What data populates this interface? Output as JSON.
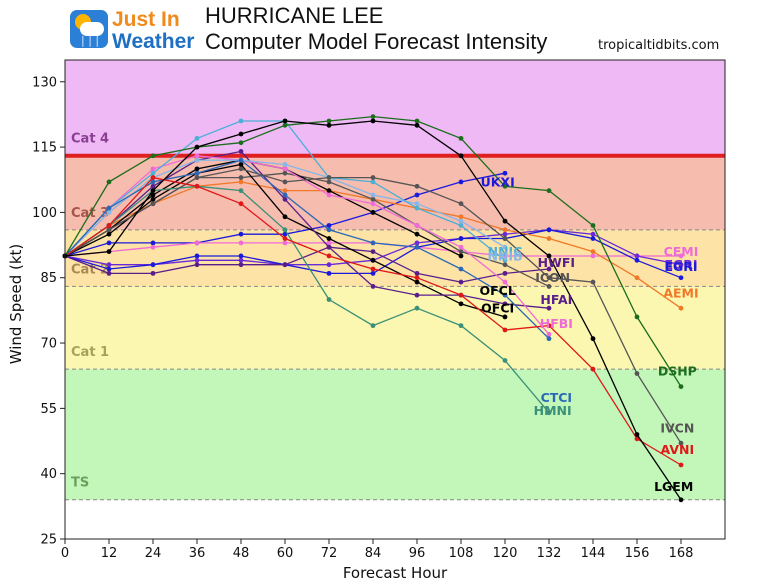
{
  "header": {
    "logo_line1": "Just In",
    "logo_line2": "Weather",
    "title_line1": "HURRICANE LEE",
    "title_line2": "Computer Model Forecast Intensity",
    "credit": "tropicaltidbits.com"
  },
  "chart_data": {
    "type": "line",
    "xlabel": "Forecast Hour",
    "ylabel": "Wind Speed (kt)",
    "xlim": [
      0,
      180
    ],
    "ylim": [
      25,
      135
    ],
    "xticks": [
      0,
      12,
      24,
      36,
      48,
      60,
      72,
      84,
      96,
      108,
      120,
      132,
      144,
      156,
      168
    ],
    "yticks": [
      25,
      40,
      55,
      70,
      85,
      100,
      115,
      130
    ],
    "bands": [
      {
        "label": "TS",
        "from": 34,
        "to": 64,
        "color": "#c2f7b9",
        "text_color": "#6e9e5e",
        "label_y": 37
      },
      {
        "label": "Cat 1",
        "from": 64,
        "to": 83,
        "color": "#fbf7b0",
        "text_color": "#a7a25a",
        "label_y": 67
      },
      {
        "label": "Cat 2",
        "from": 83,
        "to": 96,
        "color": "#fde3a6",
        "text_color": "#a88a52",
        "label_y": 86
      },
      {
        "label": "Cat 3",
        "from": 96,
        "to": 113,
        "color": "#f6bcae",
        "text_color": "#a6544a",
        "label_y": 99
      },
      {
        "label": "Cat 4",
        "from": 113,
        "to": 135,
        "color": "#eeb9f4",
        "text_color": "#8a3f92",
        "label_y": 116
      }
    ],
    "band_lines": [
      34,
      64,
      83,
      96
    ],
    "cat4_line": {
      "y": 113,
      "color": "#e02020"
    },
    "series": [
      {
        "name": "UKXI",
        "color": "#1a1adc",
        "x": [
          0,
          12,
          24,
          36,
          48,
          60,
          72,
          84,
          96,
          108,
          120
        ],
        "y": [
          90,
          93,
          93,
          93,
          95,
          95,
          97,
          100,
          104,
          107,
          109
        ]
      },
      {
        "name": "CEMI",
        "color": "#f06ad8",
        "x": [
          0,
          12,
          24,
          36,
          48,
          60,
          72,
          84,
          96,
          108,
          120,
          132,
          144,
          156,
          168
        ],
        "y": [
          90,
          91,
          92,
          93,
          93,
          93,
          93,
          93,
          92,
          91,
          90,
          90,
          90,
          90,
          90
        ]
      },
      {
        "name": "EGRI",
        "color": "#6a2ad8",
        "x": [
          0,
          12,
          24,
          36,
          48,
          60,
          72,
          84,
          96,
          108,
          120,
          132,
          144,
          156,
          168
        ],
        "y": [
          90,
          88,
          88,
          89,
          89,
          88,
          88,
          89,
          93,
          94,
          95,
          96,
          95,
          90,
          88
        ]
      },
      {
        "name": "EGRI",
        "color": "#1a1adc",
        "x": [
          0,
          12,
          24,
          36,
          48,
          60,
          72,
          84,
          96,
          108,
          120,
          132,
          144,
          156,
          168
        ],
        "y": [
          90,
          87,
          88,
          90,
          90,
          88,
          86,
          86,
          92,
          94,
          94,
          96,
          94,
          89,
          85
        ]
      },
      {
        "name": "AEMI",
        "color": "#f07828",
        "x": [
          0,
          12,
          24,
          36,
          48,
          60,
          72,
          84,
          96,
          108,
          120,
          132,
          144,
          156,
          168
        ],
        "y": [
          90,
          97,
          102,
          106,
          107,
          105,
          105,
          103,
          101,
          99,
          96,
          94,
          91,
          85,
          78
        ]
      },
      {
        "name": "HWFI",
        "color": "#5a1e8c",
        "x": [
          0,
          12,
          24,
          36,
          48,
          60,
          72,
          84,
          96,
          108,
          120,
          132
        ],
        "y": [
          90,
          86,
          86,
          88,
          88,
          88,
          92,
          91,
          86,
          84,
          86,
          87
        ]
      },
      {
        "name": "ICON",
        "color": "#555555",
        "x": [
          0,
          12,
          24,
          36,
          48,
          60,
          72,
          84,
          96,
          108,
          120,
          132
        ],
        "y": [
          90,
          96,
          102,
          108,
          108,
          109,
          107,
          103,
          97,
          91,
          88,
          83
        ]
      },
      {
        "name": "OFCL",
        "color": "#000000",
        "x": [
          0,
          12,
          24,
          36,
          48,
          60,
          72,
          84,
          96,
          108
        ],
        "y": [
          90,
          96,
          104,
          110,
          112,
          110,
          105,
          100,
          95,
          90
        ]
      },
      {
        "name": "OFCI",
        "color": "#000000",
        "x": [
          0,
          12,
          24,
          36,
          48,
          60,
          72,
          84,
          96,
          108,
          120
        ],
        "y": [
          90,
          95,
          103,
          109,
          111,
          99,
          94,
          89,
          84,
          79,
          76
        ]
      },
      {
        "name": "HFAI",
        "color": "#5a1e8c",
        "x": [
          0,
          12,
          24,
          36,
          48,
          60,
          72,
          84,
          96,
          108,
          120,
          132
        ],
        "y": [
          90,
          97,
          106,
          112,
          114,
          103,
          92,
          83,
          81,
          81,
          79,
          78
        ]
      },
      {
        "name": "HFBI",
        "color": "#f06ad8",
        "x": [
          0,
          12,
          24,
          36,
          48,
          60,
          72,
          84,
          96,
          108,
          120,
          132
        ],
        "y": [
          90,
          101,
          110,
          113,
          112,
          110,
          104,
          102,
          97,
          92,
          84,
          72
        ]
      },
      {
        "name": "NNIB",
        "color": "#87b6e8",
        "x": [
          0,
          12,
          24,
          36,
          48,
          60,
          72,
          84,
          96,
          108,
          120
        ],
        "y": [
          90,
          100,
          108,
          112,
          112,
          111,
          108,
          104,
          102,
          98,
          92
        ]
      },
      {
        "name": "NNIC",
        "color": "#4ab0d8",
        "x": [
          0,
          12,
          24,
          36,
          48,
          60,
          72,
          84,
          96,
          108,
          120
        ],
        "y": [
          90,
          101,
          109,
          117,
          121,
          121,
          108,
          107,
          101,
          97,
          89
        ]
      },
      {
        "name": "CTCI",
        "color": "#2a68b8",
        "x": [
          0,
          12,
          24,
          36,
          48,
          60,
          72,
          84,
          96,
          108,
          120,
          132
        ],
        "y": [
          90,
          101,
          107,
          109,
          112,
          104,
          96,
          93,
          92,
          87,
          81,
          71
        ]
      },
      {
        "name": "HMNI",
        "color": "#3a9078",
        "x": [
          0,
          12,
          24,
          36,
          48,
          60,
          72,
          84,
          96,
          108,
          120,
          132
        ],
        "y": [
          90,
          97,
          105,
          106,
          105,
          96,
          80,
          74,
          78,
          74,
          66,
          54
        ]
      },
      {
        "name": "DSHP",
        "color": "#1c6e1c",
        "x": [
          0,
          12,
          24,
          36,
          48,
          60,
          72,
          84,
          96,
          108,
          120,
          132,
          144,
          156,
          168
        ],
        "y": [
          90,
          107,
          113,
          115,
          116,
          120,
          121,
          122,
          121,
          117,
          106,
          105,
          97,
          76,
          60
        ]
      },
      {
        "name": "IVCN",
        "color": "#555555",
        "x": [
          0,
          12,
          24,
          36,
          48,
          60,
          72,
          84,
          96,
          108,
          120,
          132,
          144,
          156,
          168
        ],
        "y": [
          90,
          96,
          102,
          108,
          110,
          107,
          108,
          108,
          106,
          102,
          94,
          85,
          84,
          63,
          47
        ]
      },
      {
        "name": "AVNI",
        "color": "#e01818",
        "x": [
          0,
          12,
          24,
          36,
          48,
          60,
          72,
          84,
          96,
          108,
          120,
          132,
          144,
          156,
          168
        ],
        "y": [
          90,
          97,
          108,
          106,
          102,
          94,
          90,
          87,
          85,
          81,
          73,
          74,
          64,
          48,
          42
        ]
      },
      {
        "name": "LGEM",
        "color": "#000000",
        "x": [
          0,
          12,
          24,
          36,
          48,
          60,
          72,
          84,
          96,
          108,
          120,
          132,
          144,
          156,
          168
        ],
        "y": [
          90,
          91,
          105,
          115,
          118,
          121,
          120,
          121,
          120,
          113,
          98,
          90,
          71,
          49,
          34
        ]
      }
    ],
    "labels": [
      {
        "text": "UKXI",
        "color": "#1a1adc",
        "x": 118,
        "y": 106
      },
      {
        "text": "NNIC",
        "color": "#4ab0d8",
        "x": 120,
        "y": 90
      },
      {
        "text": "NNIB",
        "color": "#87b6e8",
        "x": 120,
        "y": 89
      },
      {
        "text": "HWFI",
        "color": "#5a1e8c",
        "x": 134,
        "y": 87.5
      },
      {
        "text": "ICON",
        "color": "#555555",
        "x": 133,
        "y": 84
      },
      {
        "text": "OFCL",
        "color": "#000000",
        "x": 118,
        "y": 81
      },
      {
        "text": "HFAI",
        "color": "#5a1e8c",
        "x": 134,
        "y": 79
      },
      {
        "text": "OFCI",
        "color": "#000000",
        "x": 118,
        "y": 77
      },
      {
        "text": "HFBI",
        "color": "#f06ad8",
        "x": 134,
        "y": 73.5
      },
      {
        "text": "CTCI",
        "color": "#2a68b8",
        "x": 134,
        "y": 56.5
      },
      {
        "text": "HMNI",
        "color": "#3a9078",
        "x": 133,
        "y": 53.5
      },
      {
        "text": "CEMI",
        "color": "#f06ad8",
        "x": 168,
        "y": 90
      },
      {
        "text": "EGRI",
        "color": "#6a2ad8",
        "x": 168,
        "y": 87
      },
      {
        "text": "EGRI",
        "color": "#1a1adc",
        "x": 168,
        "y": 86.6
      },
      {
        "text": "AEMI",
        "color": "#f07828",
        "x": 168,
        "y": 80.5
      },
      {
        "text": "DSHP",
        "color": "#1c6e1c",
        "x": 167,
        "y": 62.5
      },
      {
        "text": "IVCN",
        "color": "#555555",
        "x": 167,
        "y": 49.5
      },
      {
        "text": "AVNI",
        "color": "#e01818",
        "x": 167,
        "y": 44.5
      },
      {
        "text": "LGEM",
        "color": "#000000",
        "x": 166,
        "y": 36
      }
    ]
  }
}
